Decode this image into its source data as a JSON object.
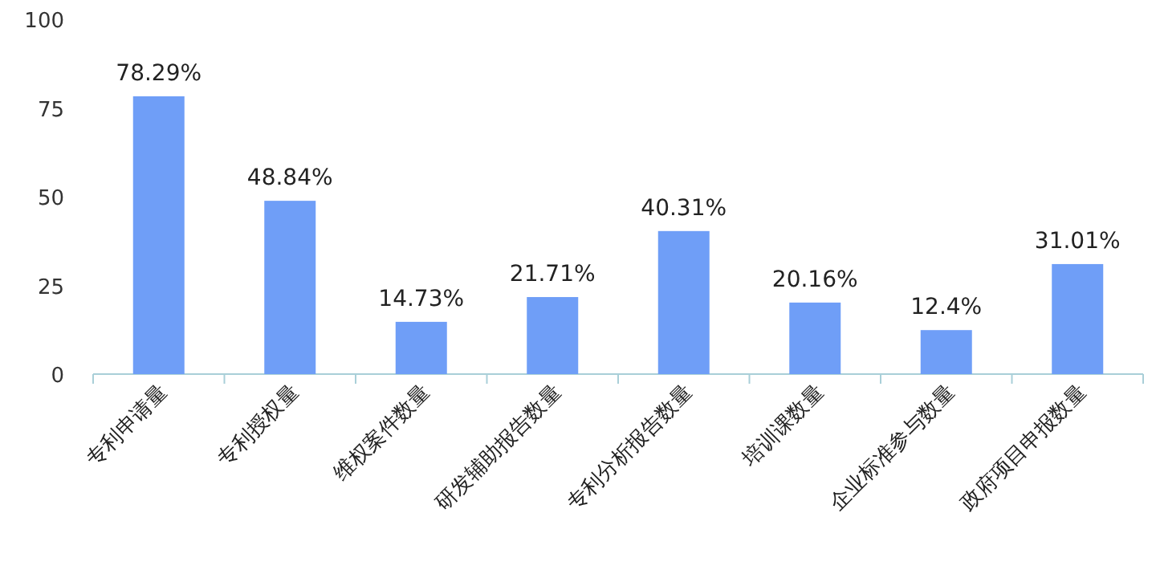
{
  "chart_data": {
    "type": "bar",
    "categories": [
      "专利申请量",
      "专利授权量",
      "维权案件数量",
      "研发辅助报告数量",
      "专利分析报告数量",
      "培训课数量",
      "企业标准参与数量",
      "政府项目申报数量"
    ],
    "values": [
      78.29,
      48.84,
      14.73,
      21.71,
      40.31,
      20.16,
      12.4,
      31.01
    ],
    "value_labels": [
      "78.29%",
      "48.84%",
      "14.73%",
      "21.71%",
      "40.31%",
      "20.16%",
      "12.4%",
      "31.01%"
    ],
    "color": "#6f9ef7",
    "ylim": [
      0,
      100
    ],
    "yticks": [
      0,
      25,
      50,
      75,
      100
    ]
  }
}
